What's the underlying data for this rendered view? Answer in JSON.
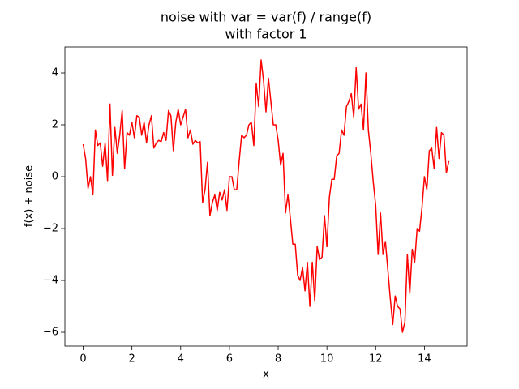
{
  "chart_data": {
    "type": "line",
    "title": "noise with var = var(f) / range(f)",
    "subtitle": "with factor 1",
    "xlabel": "x",
    "ylabel": "f(x) + noise",
    "color": "#ff0000",
    "x": [
      0,
      0.1,
      0.2,
      0.3,
      0.4,
      0.5,
      0.6,
      0.7,
      0.8,
      0.9,
      1,
      1.1,
      1.2,
      1.3,
      1.4,
      1.5,
      1.6,
      1.7,
      1.8,
      1.9,
      2,
      2.1,
      2.2,
      2.3,
      2.4,
      2.5,
      2.6,
      2.7,
      2.8,
      2.9,
      3,
      3.1,
      3.2,
      3.3,
      3.4,
      3.5,
      3.6,
      3.7,
      3.8,
      3.9,
      4,
      4.1,
      4.2,
      4.3,
      4.4,
      4.5,
      4.6,
      4.7,
      4.8,
      4.9,
      5,
      5.1,
      5.2,
      5.3,
      5.4,
      5.5,
      5.6,
      5.7,
      5.8,
      5.9,
      6,
      6.1,
      6.2,
      6.3,
      6.4,
      6.5,
      6.6,
      6.7,
      6.8,
      6.9,
      7,
      7.1,
      7.2,
      7.3,
      7.4,
      7.5,
      7.6,
      7.7,
      7.8,
      7.9,
      8,
      8.1,
      8.2,
      8.3,
      8.4,
      8.5,
      8.6,
      8.7,
      8.8,
      8.9,
      9,
      9.1,
      9.2,
      9.3,
      9.4,
      9.5,
      9.6,
      9.7,
      9.8,
      9.9,
      10,
      10.1,
      10.2,
      10.3,
      10.4,
      10.5,
      10.6,
      10.7,
      10.8,
      10.9,
      11,
      11.1,
      11.2,
      11.3,
      11.4,
      11.5,
      11.6,
      11.7,
      11.8,
      11.9,
      12,
      12.1,
      12.2,
      12.3,
      12.4,
      12.5,
      12.6,
      12.7,
      12.8,
      12.9,
      13,
      13.1,
      13.2,
      13.3,
      13.4,
      13.5,
      13.6,
      13.7,
      13.8,
      13.9,
      14,
      14.1,
      14.2,
      14.3,
      14.4,
      14.5,
      14.6,
      14.7,
      14.8,
      14.9,
      15
    ],
    "values": [
      1.25,
      0.7,
      -0.45,
      0.0,
      -0.7,
      1.8,
      1.2,
      1.3,
      0.4,
      1.3,
      -0.15,
      2.8,
      0.05,
      1.9,
      0.9,
      1.6,
      2.55,
      0.3,
      1.7,
      1.6,
      2.1,
      1.5,
      2.35,
      2.3,
      1.6,
      2.1,
      1.3,
      2.0,
      2.35,
      1.1,
      1.3,
      1.4,
      1.35,
      1.7,
      1.4,
      2.55,
      2.35,
      1.0,
      2.1,
      2.6,
      2.0,
      2.3,
      2.6,
      1.5,
      1.8,
      1.25,
      1.4,
      1.3,
      1.35,
      -1.0,
      -0.5,
      0.55,
      -1.5,
      -1.0,
      -0.7,
      -1.3,
      -0.6,
      -0.9,
      -0.5,
      -1.3,
      0.0,
      0.0,
      -0.5,
      -0.5,
      0.6,
      1.6,
      1.5,
      1.6,
      2.0,
      2.1,
      1.2,
      3.6,
      2.7,
      4.5,
      3.7,
      2.5,
      3.8,
      2.9,
      2.0,
      2.0,
      1.4,
      0.45,
      0.9,
      -1.4,
      -0.7,
      -1.6,
      -2.6,
      -2.6,
      -3.8,
      -4.0,
      -3.5,
      -4.4,
      -3.3,
      -5.0,
      -3.3,
      -4.8,
      -2.7,
      -3.2,
      -3.1,
      -1.5,
      -2.7,
      -0.8,
      -0.1,
      -0.1,
      0.8,
      0.9,
      1.8,
      1.6,
      2.7,
      2.9,
      3.2,
      2.3,
      4.2,
      2.6,
      2.8,
      1.8,
      4.0,
      1.8,
      0.9,
      -0.2,
      -1.1,
      -3.0,
      -1.4,
      -3.0,
      -2.5,
      -3.6,
      -4.7,
      -5.7,
      -4.6,
      -5.0,
      -5.1,
      -6.0,
      -5.6,
      -3.0,
      -4.5,
      -2.8,
      -3.3,
      -2.0,
      -2.1,
      -1.2,
      0.0,
      -0.5,
      1.0,
      1.1,
      0.3,
      1.9,
      0.7,
      1.7,
      1.6,
      0.15,
      0.6
    ],
    "xlim": [
      -0.75,
      15.75
    ],
    "ylim": [
      -6.53,
      5.0
    ],
    "xticks": [
      0,
      2,
      4,
      6,
      8,
      10,
      12,
      14
    ],
    "yticks": [
      {
        "value": -6,
        "label": "−6"
      },
      {
        "value": -4,
        "label": "−4"
      },
      {
        "value": -2,
        "label": "−2"
      },
      0,
      2,
      4
    ],
    "grid": false
  }
}
